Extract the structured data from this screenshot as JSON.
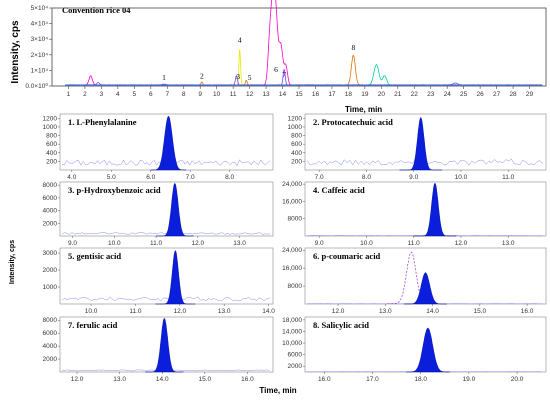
{
  "chart_data": [
    {
      "type": "line",
      "title": "Convention rice 04",
      "xlabel": "Time, min",
      "ylabel": "Intensity, cps",
      "xlim": [
        0,
        30
      ],
      "ylim": [
        0,
        5
      ],
      "y_tick_labels": [
        "0.0×10⁰",
        "1×10⁴",
        "2×10⁴",
        "3×10⁴",
        "4×10⁴",
        "5×10⁴"
      ],
      "x_ticks": [
        1,
        2,
        3,
        4,
        5,
        6,
        7,
        8,
        9,
        10,
        11,
        12,
        13,
        14,
        15,
        16,
        17,
        18,
        19,
        20,
        21,
        22,
        23,
        24,
        25,
        26,
        27,
        28,
        29
      ],
      "peak_labels": [
        {
          "label": "1",
          "x": 6.8,
          "y": 0.18
        },
        {
          "label": "2",
          "x": 9.1,
          "y": 0.3
        },
        {
          "label": "3",
          "x": 11.3,
          "y": 0.25
        },
        {
          "label": "4",
          "x": 11.4,
          "y": 2.6
        },
        {
          "label": "5",
          "x": 12.0,
          "y": 0.2
        },
        {
          "label": "6",
          "x": 13.6,
          "y": 0.7
        },
        {
          "label": "7",
          "x": 14.1,
          "y": 0.4
        },
        {
          "label": "8",
          "x": 18.3,
          "y": 2.1
        }
      ],
      "series": [
        {
          "color": "#ff00cc",
          "peaks": [
            [
              13.4,
              4.9,
              0.13
            ],
            [
              13.6,
              3.7,
              0.12
            ],
            [
              13.9,
              2.5,
              0.12
            ],
            [
              13.2,
              1.9,
              0.1
            ],
            [
              2.35,
              0.6,
              0.1
            ],
            [
              14.2,
              1.2,
              0.1
            ]
          ]
        },
        {
          "color": "#e8e800",
          "peaks": [
            [
              11.4,
              2.3,
              0.05
            ]
          ]
        },
        {
          "color": "#e07000",
          "peaks": [
            [
              18.3,
              1.9,
              0.12
            ],
            [
              9.1,
              0.2,
              0.05
            ],
            [
              11.8,
              0.3,
              0.05
            ]
          ]
        },
        {
          "color": "#00d0a0",
          "peaks": [
            [
              19.7,
              1.3,
              0.15
            ],
            [
              20.2,
              0.6,
              0.12
            ]
          ]
        },
        {
          "color": "#7a3fff",
          "peaks": [
            [
              11.2,
              0.6,
              0.06
            ],
            [
              14.1,
              1.0,
              0.06
            ],
            [
              2.8,
              0.15,
              0.08
            ]
          ]
        },
        {
          "color": "#3070ff",
          "peaks": [
            [
              24.5,
              0.12,
              0.15
            ],
            [
              6.8,
              0.06,
              0.1
            ]
          ]
        }
      ]
    },
    {
      "type": "area",
      "title": "1. L-Phenylalanine",
      "xlim": [
        3.7,
        9.1
      ],
      "ylim": [
        0,
        1300
      ],
      "y_ticks": [
        200,
        400,
        600,
        800,
        1000,
        1200
      ],
      "x_ticks": [
        4.0,
        5.0,
        6.0,
        7.0,
        8.0
      ],
      "peak_x": 6.45,
      "peak_y": 1250,
      "peak_w": 0.1,
      "noise": 170
    },
    {
      "type": "area",
      "title": "2. Protocatechuic acid",
      "xlim": [
        6.7,
        11.8
      ],
      "ylim": [
        0,
        1300
      ],
      "y_ticks": [
        200,
        400,
        600,
        800,
        1000,
        1200
      ],
      "x_ticks": [
        7.0,
        8.0,
        9.0,
        10.0,
        11.0
      ],
      "peak_x": 9.15,
      "peak_y": 1220,
      "peak_w": 0.07,
      "noise": 180
    },
    {
      "type": "area",
      "title": "3. p-Hydroxybenzoic acid",
      "xlim": [
        8.7,
        13.8
      ],
      "ylim": [
        0,
        8500
      ],
      "y_ticks": [
        2000,
        4000,
        6000,
        8000
      ],
      "x_ticks": [
        9.0,
        10.0,
        11.0,
        12.0,
        13.0
      ],
      "peak_x": 11.45,
      "peak_y": 8300,
      "peak_w": 0.08,
      "noise": 400
    },
    {
      "type": "area",
      "title": "4. Caffeic acid",
      "xlim": [
        8.7,
        13.8
      ],
      "ylim": [
        0,
        25000
      ],
      "y_ticks": [
        8000,
        16000,
        24000
      ],
      "x_ticks": [
        9.0,
        10.0,
        11.0,
        12.0,
        13.0
      ],
      "peak_x": 11.45,
      "peak_y": 24500,
      "peak_w": 0.07,
      "noise": 200
    },
    {
      "type": "area",
      "title": "5. gentisic acid",
      "xlim": [
        9.3,
        14.1
      ],
      "ylim": [
        0,
        3300
      ],
      "y_ticks": [
        1000,
        2000,
        3000
      ],
      "x_ticks": [
        10.0,
        11.0,
        12.0,
        13.0,
        14.0
      ],
      "peak_x": 11.9,
      "peak_y": 3150,
      "peak_w": 0.07,
      "noise": 300
    },
    {
      "type": "area",
      "title": "6. p-coumaric acid",
      "xlim": [
        11.3,
        16.4
      ],
      "ylim": [
        0,
        25000
      ],
      "y_ticks": [
        8000,
        16000,
        24000
      ],
      "x_ticks": [
        12.0,
        13.0,
        14.0,
        15.0,
        16.0
      ],
      "peak_x": 13.85,
      "peak_y": 14000,
      "peak_w": 0.09,
      "noise": 150,
      "ghost_x": 13.55,
      "ghost_y": 23000
    },
    {
      "type": "area",
      "title": "7. ferulic acid",
      "xlim": [
        11.6,
        16.6
      ],
      "ylim": [
        0,
        8500
      ],
      "y_ticks": [
        2000,
        4000,
        6000,
        8000
      ],
      "x_ticks": [
        12.0,
        13.0,
        14.0,
        15.0,
        16.0
      ],
      "peak_x": 14.05,
      "peak_y": 8300,
      "peak_w": 0.08,
      "noise": 250
    },
    {
      "type": "area",
      "title": "8. Salicylic acid",
      "xlim": [
        15.6,
        20.6
      ],
      "ylim": [
        0,
        19000
      ],
      "y_ticks": [
        2000,
        6000,
        10000,
        14000,
        18000
      ],
      "x_ticks": [
        16.0,
        17.0,
        18.0,
        19.0,
        20.0
      ],
      "peak_x": 18.15,
      "peak_y": 15200,
      "peak_w": 0.1,
      "noise": 100
    }
  ],
  "shared": {
    "ylabel": "Intensity, cps",
    "xlabel": "Time, min",
    "fill_color": "#0a1edc",
    "baseline_color": "#8888ee"
  }
}
